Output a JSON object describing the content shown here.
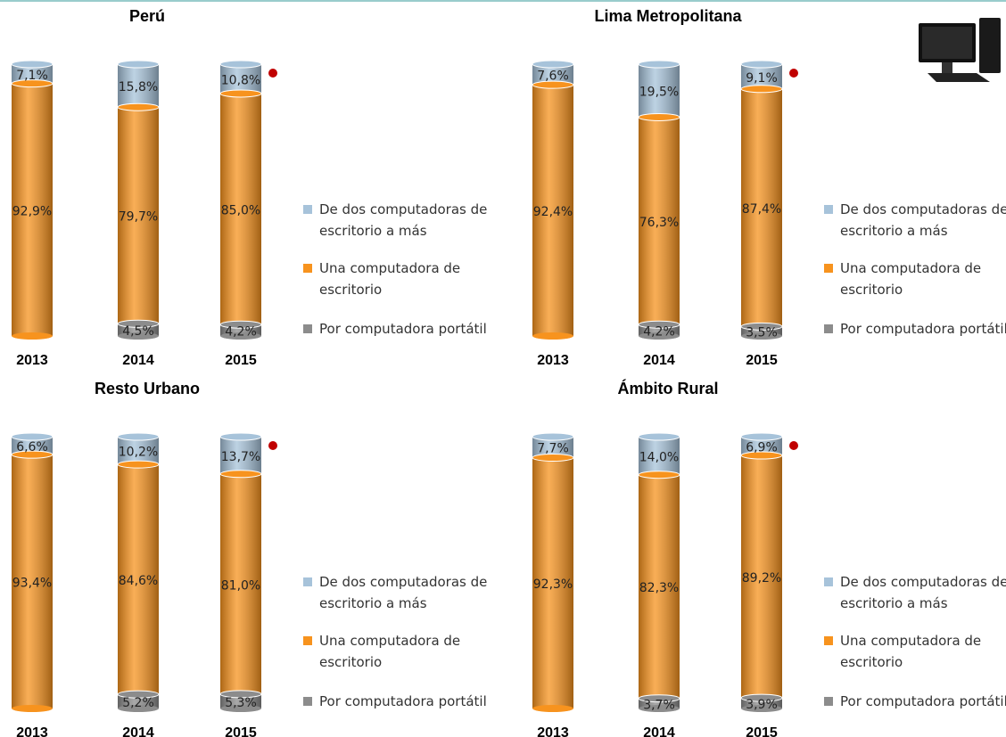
{
  "chart_data": [
    {
      "type": "stacked-bar",
      "title": "Perú",
      "categories": [
        "2013",
        "2014",
        "2015"
      ],
      "ylim": [
        0,
        100
      ],
      "series": [
        {
          "name": "De dos computadoras de escritorio a más",
          "color": "#a7c3da",
          "values": [
            7.1,
            15.8,
            10.8
          ],
          "value_labels": [
            "7,1%",
            "15,8%",
            "10,8%"
          ]
        },
        {
          "name": "Una computadora de escritorio",
          "color": "#f7931e",
          "values": [
            92.9,
            79.7,
            85.0
          ],
          "value_labels": [
            "92,9%",
            "79,7%",
            "85,0%"
          ]
        },
        {
          "name": "Por computadora portátil",
          "color": "#8c8c8c",
          "values": [
            null,
            4.5,
            4.2
          ],
          "value_labels": [
            null,
            "4,5%",
            "4,2%"
          ]
        }
      ]
    },
    {
      "type": "stacked-bar",
      "title": "Lima Metropolitana",
      "categories": [
        "2013",
        "2014",
        "2015"
      ],
      "ylim": [
        0,
        100
      ],
      "series": [
        {
          "name": "De dos computadoras de escritorio a más",
          "color": "#a7c3da",
          "values": [
            7.6,
            19.5,
            9.1
          ],
          "value_labels": [
            "7,6%",
            "19,5%",
            "9,1%"
          ]
        },
        {
          "name": "Una computadora de escritorio",
          "color": "#f7931e",
          "values": [
            92.4,
            76.3,
            87.4
          ],
          "value_labels": [
            "92,4%",
            "76,3%",
            "87,4%"
          ]
        },
        {
          "name": "Por computadora portátil",
          "color": "#8c8c8c",
          "values": [
            null,
            4.2,
            3.5
          ],
          "value_labels": [
            null,
            "4,2%",
            "3,5%"
          ]
        }
      ]
    },
    {
      "type": "stacked-bar",
      "title": "Resto Urbano",
      "categories": [
        "2013",
        "2014",
        "2015"
      ],
      "ylim": [
        0,
        100
      ],
      "series": [
        {
          "name": "De dos computadoras de escritorio a más",
          "color": "#a7c3da",
          "values": [
            6.6,
            10.2,
            13.7
          ],
          "value_labels": [
            "6,6%",
            "10,2%",
            "13,7%"
          ]
        },
        {
          "name": "Una computadora de escritorio",
          "color": "#f7931e",
          "values": [
            93.4,
            84.6,
            81.0
          ],
          "value_labels": [
            "93,4%",
            "84,6%",
            "81,0%"
          ]
        },
        {
          "name": "Por computadora portátil",
          "color": "#8c8c8c",
          "values": [
            null,
            5.2,
            5.3
          ],
          "value_labels": [
            null,
            "5,2%",
            "5,3%"
          ]
        }
      ]
    },
    {
      "type": "stacked-bar",
      "title": "Ámbito Rural",
      "categories": [
        "2013",
        "2014",
        "2015"
      ],
      "ylim": [
        0,
        100
      ],
      "series": [
        {
          "name": "De dos computadoras de escritorio a más",
          "color": "#a7c3da",
          "values": [
            7.7,
            14.0,
            6.9
          ],
          "value_labels": [
            "7,7%",
            "14,0%",
            "6,9%"
          ]
        },
        {
          "name": "Una computadora de escritorio",
          "color": "#f7931e",
          "values": [
            92.3,
            82.3,
            89.2
          ],
          "value_labels": [
            "92,3%",
            "82,3%",
            "89,2%"
          ]
        },
        {
          "name": "Por computadora portátil",
          "color": "#8c8c8c",
          "values": [
            null,
            3.7,
            3.9
          ],
          "value_labels": [
            null,
            "3,7%",
            "3,9%"
          ]
        }
      ]
    }
  ]
}
